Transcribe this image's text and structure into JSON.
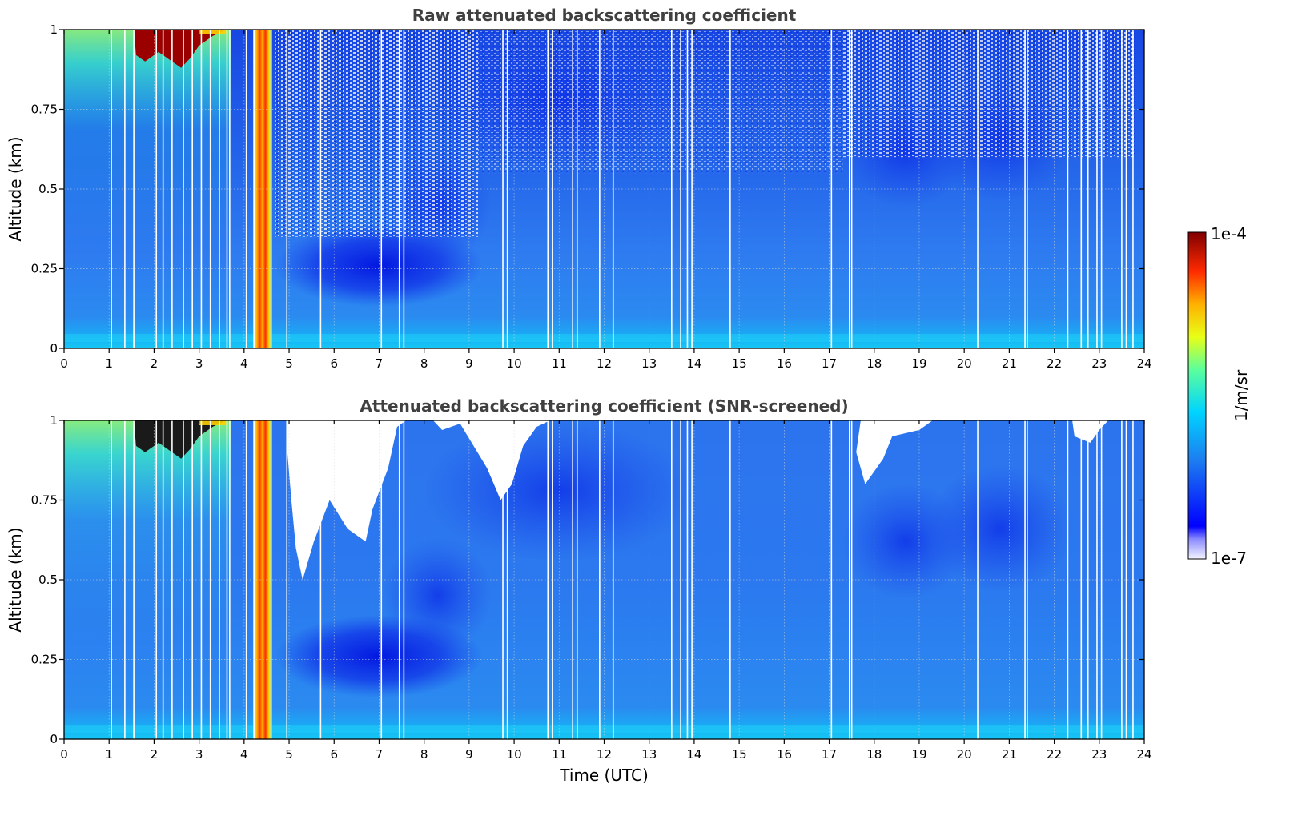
{
  "chart_data": [
    {
      "type": "heatmap",
      "title": "Raw attenuated backscattering coefficient",
      "xlabel": "",
      "ylabel": "Altitude (km)",
      "xlim": [
        0,
        24
      ],
      "ylim": [
        0,
        1
      ],
      "xticks": [
        0,
        1,
        2,
        3,
        4,
        5,
        6,
        7,
        8,
        9,
        10,
        11,
        12,
        13,
        14,
        15,
        16,
        17,
        18,
        19,
        20,
        21,
        22,
        23,
        24
      ],
      "yticks": [
        0,
        0.25,
        0.5,
        0.75,
        1
      ],
      "ytick_labels": [
        "0",
        "0.25",
        "0.5",
        "0.75",
        "1"
      ],
      "grid": true,
      "colormap": "jet",
      "screened": false
    },
    {
      "type": "heatmap",
      "title": "Attenuated backscattering coefficient (SNR-screened)",
      "xlabel": "Time (UTC)",
      "ylabel": "Altitude (km)",
      "xlim": [
        0,
        24
      ],
      "ylim": [
        0,
        1
      ],
      "xticks": [
        0,
        1,
        2,
        3,
        4,
        5,
        6,
        7,
        8,
        9,
        10,
        11,
        12,
        13,
        14,
        15,
        16,
        17,
        18,
        19,
        20,
        21,
        22,
        23,
        24
      ],
      "yticks": [
        0,
        0.25,
        0.5,
        0.75,
        1
      ],
      "ytick_labels": [
        "0",
        "0.25",
        "0.5",
        "0.75",
        "1"
      ],
      "grid": true,
      "colormap": "jet",
      "screened": true
    }
  ],
  "colorbar": {
    "label": "1/m/sr",
    "max_label": "1e-4",
    "min_label": "1e-7",
    "scale": "log",
    "range": [
      1e-07,
      0.0001
    ]
  },
  "data_gaps_utc": [
    1.05,
    1.35,
    1.55,
    2.05,
    2.2,
    2.4,
    2.65,
    2.85,
    3.05,
    3.25,
    3.45,
    3.62,
    3.68,
    4.05,
    4.22,
    4.6,
    4.95,
    5.7,
    7.05,
    7.45,
    7.55,
    9.75,
    9.85,
    10.75,
    10.85,
    11.3,
    11.4,
    11.9,
    12.2,
    13.5,
    13.7,
    13.85,
    13.95,
    14.8,
    17.05,
    17.45,
    17.5,
    20.3,
    21.35,
    21.4,
    22.3,
    22.6,
    22.75,
    22.95,
    23.05,
    23.5,
    23.6,
    23.75
  ],
  "colors": {
    "background": "#2b70f0",
    "title": "#404040",
    "gap": "#ffffff",
    "grid": "#cccccc"
  }
}
